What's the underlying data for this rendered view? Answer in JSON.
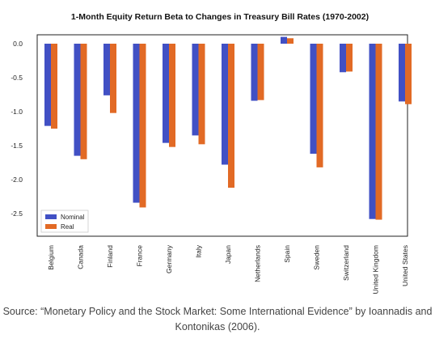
{
  "chart_data": {
    "type": "bar",
    "title": "1-Month Equity Return Beta to Changes in Treasury Bill Rates (1970-2002)",
    "xlabel": "",
    "ylabel": "",
    "categories": [
      "Belgium",
      "Canada",
      "Finland",
      "France",
      "Germany",
      "Italy",
      "Japan",
      "Netherlands",
      "Spain",
      "Sweden",
      "Switzerland",
      "United Kingdom",
      "United States"
    ],
    "series": [
      {
        "name": "Nominal",
        "color": "#4150c4",
        "values": [
          -1.21,
          -1.65,
          -0.76,
          -2.34,
          -1.46,
          -1.35,
          -1.78,
          -0.84,
          0.1,
          -1.62,
          -0.42,
          -2.58,
          -0.85
        ]
      },
      {
        "name": "Real",
        "color": "#e26a25",
        "values": [
          -1.25,
          -1.7,
          -1.02,
          -2.41,
          -1.52,
          -1.48,
          -2.12,
          -0.83,
          0.08,
          -1.82,
          -0.41,
          -2.59,
          -0.89
        ]
      }
    ],
    "ylim": [
      -2.85,
      0.12
    ],
    "yticks": [
      "0.0",
      "-0.5",
      "-1.0",
      "-1.5",
      "-2.0",
      "-2.5"
    ],
    "ytick_values": [
      0,
      -0.5,
      -1.0,
      -1.5,
      -2.0,
      -2.5
    ],
    "grid": false,
    "legend_position": "bottom-left"
  },
  "caption": {
    "line1": "Source: “Monetary Policy and the Stock Market: Some International Evidence” by Ioannadis and",
    "line2": "Kontonikas (2006)."
  }
}
